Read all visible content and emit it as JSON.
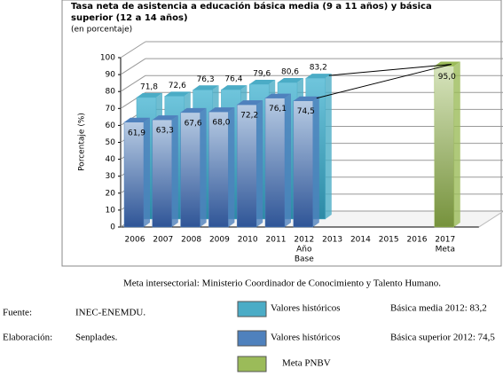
{
  "chart_data": {
    "type": "bar3d",
    "title": [
      "Tasa neta de asistencia a educación básica media (9 a 11 años) y básica",
      "superior (12 a 14 años)"
    ],
    "subtitle": "(en porcentaje)",
    "y_label": "Porcentaje (%)",
    "categories": [
      "2006",
      "2007",
      "2008",
      "2009",
      "2010",
      "2011",
      "2012",
      "2013",
      "2014",
      "2015",
      "2016",
      "2017"
    ],
    "category_notes": [
      null,
      null,
      null,
      null,
      null,
      null,
      [
        "Año",
        "Base"
      ],
      null,
      null,
      null,
      null,
      [
        "Meta"
      ]
    ],
    "ylim": [
      0,
      100
    ],
    "yticks": [
      0,
      10,
      20,
      30,
      40,
      50,
      60,
      70,
      80,
      90,
      100
    ],
    "grid": true,
    "series": [
      {
        "name": "Valores históricos",
        "color": "#4bacc6",
        "depth": "back",
        "values": [
          71.8,
          72.6,
          76.3,
          76.4,
          79.6,
          80.6,
          83.2,
          null,
          null,
          null,
          null,
          null
        ],
        "value_labels": [
          "71,8",
          "72,6",
          "76,3",
          "76,4",
          "79,6",
          "80,6",
          "83,2",
          null,
          null,
          null,
          null,
          null
        ]
      },
      {
        "name": "Valores históricos",
        "color": "#4f81bd",
        "depth": "front",
        "values": [
          61.9,
          63.3,
          67.6,
          68.0,
          72.2,
          76.1,
          74.5,
          null,
          null,
          null,
          null,
          null
        ],
        "value_labels": [
          "61,9",
          "63,3",
          "67,6",
          "68,0",
          "72,2",
          "76,1",
          "74,5",
          null,
          null,
          null,
          null,
          null
        ]
      },
      {
        "name": "Meta PNBV",
        "color": "#9bbb59",
        "depth": "front",
        "values": [
          null,
          null,
          null,
          null,
          null,
          null,
          null,
          null,
          null,
          null,
          null,
          95.0
        ],
        "value_labels": [
          null,
          null,
          null,
          null,
          null,
          null,
          null,
          null,
          null,
          null,
          null,
          "95,0"
        ]
      }
    ],
    "legend_notes": [
      "Básica media 2012: 83,2",
      "Básica superior 2012: 74,5"
    ],
    "footnote": "Meta intersectorial: Ministerio Coordinador de Conocimiento y Talento Humano.",
    "source_label": "Fuente:",
    "source": "INEC-ENEMDU.",
    "credit_label": "Elaboración:",
    "credit": "Senplades."
  }
}
